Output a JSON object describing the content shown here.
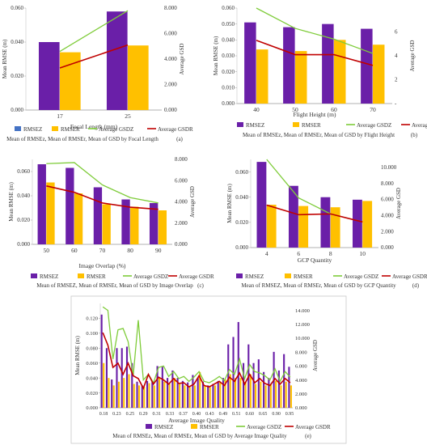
{
  "colors": {
    "rmsez": "#6a1fa8",
    "rmser": "#ffc000",
    "gsdz": "#7fcc3a",
    "gsdr": "#c00000",
    "rmsez_a": "#4472c4"
  },
  "chart_data": [
    {
      "id": "a",
      "type": "bar",
      "panel_label": "(a)",
      "caption": "Mean of RMSEz, Mean of RMSEr, Mean of GSD by Focal Length",
      "xlabel": "Focal Length (mm)",
      "ylabel": "Mean RMSE (m)",
      "ylabel2": "Average GSD",
      "categories": [
        "17",
        "25"
      ],
      "ylim": [
        0,
        0.06
      ],
      "yticks": [
        "0.000",
        "0.020",
        "0.040",
        "0.060"
      ],
      "y2lim": [
        0,
        8
      ],
      "y2ticks": [
        "0.000",
        "2.000",
        "4.000",
        "6.000",
        "8.000"
      ],
      "series": [
        {
          "name": "RMSEZ",
          "kind": "bar",
          "axis": "left",
          "values": [
            0.04,
            0.058
          ]
        },
        {
          "name": "RMSER",
          "kind": "bar",
          "axis": "left",
          "values": [
            0.034,
            0.038
          ]
        },
        {
          "name": "Average GSDZ",
          "kind": "line",
          "axis": "right",
          "values": [
            4.6,
            7.8
          ]
        },
        {
          "name": "Average GSDR",
          "kind": "line",
          "axis": "right",
          "values": [
            3.3,
            5.1
          ]
        }
      ]
    },
    {
      "id": "b",
      "type": "bar",
      "panel_label": "(b)",
      "caption": "Mean of RMSEz, Mean of RMSEr, Mean of GSD by Flight Height",
      "xlabel": "Flight Height (m)",
      "ylabel": "Mean RMSE (m)",
      "ylabel2": "Average GSD",
      "categories": [
        "40",
        "50",
        "60",
        "70"
      ],
      "ylim": [
        0,
        0.06
      ],
      "yticks": [
        "0.000",
        "0.010",
        "0.020",
        "0.030",
        "0.040",
        "0.050",
        "0.060"
      ],
      "y2lim": [
        0,
        8
      ],
      "y2ticks": [
        "-",
        "2",
        "4",
        "6"
      ],
      "series": [
        {
          "name": "RMSEZ",
          "kind": "bar",
          "axis": "left",
          "values": [
            0.051,
            0.048,
            0.05,
            0.047
          ]
        },
        {
          "name": "RMSER",
          "kind": "bar",
          "axis": "left",
          "values": [
            0.034,
            0.033,
            0.04,
            0.037
          ]
        },
        {
          "name": "Average GSDZ",
          "kind": "line",
          "axis": "right",
          "values": [
            8.0,
            6.3,
            5.4,
            4.2
          ]
        },
        {
          "name": "Average GSDR",
          "kind": "line",
          "axis": "right",
          "values": [
            5.3,
            4.1,
            4.1,
            3.2
          ]
        }
      ]
    },
    {
      "id": "c",
      "type": "bar",
      "panel_label": "(c)",
      "caption": "Mean of RMSEZ, Mean of RMSEr, Mean of GSD by Image Overlap",
      "xlabel": "Image Overlap (%)",
      "ylabel": "Mean RMSE (m)",
      "ylabel2": "Average GSD",
      "categories": [
        "50",
        "60",
        "70",
        "80",
        "90"
      ],
      "ylim": [
        0,
        0.07
      ],
      "yticks": [
        "0.000",
        "0.020",
        "0.040",
        "0.060"
      ],
      "y2lim": [
        0,
        8
      ],
      "y2ticks": [
        "0.000",
        "2.000",
        "4.000",
        "6.000",
        "8.000"
      ],
      "series": [
        {
          "name": "RMSEZ",
          "kind": "bar",
          "axis": "left",
          "values": [
            0.066,
            0.063,
            0.047,
            0.037,
            0.034
          ]
        },
        {
          "name": "RMSER",
          "kind": "bar",
          "axis": "left",
          "values": [
            0.051,
            0.042,
            0.033,
            0.031,
            0.028
          ]
        },
        {
          "name": "Average GSDZ",
          "kind": "line",
          "axis": "right",
          "values": [
            7.6,
            7.7,
            5.6,
            4.4,
            3.9
          ]
        },
        {
          "name": "Average GSDR",
          "kind": "line",
          "axis": "right",
          "values": [
            5.5,
            4.9,
            3.9,
            3.5,
            3.3
          ]
        }
      ]
    },
    {
      "id": "d",
      "type": "bar",
      "panel_label": "(d)",
      "caption": "Mean of RMSEZ, Mean of RMSEr, Mean of GSD by GCP Quantity",
      "xlabel": "GCP Quantity",
      "ylabel": "Mean RMSE (m)",
      "ylabel2": "Average GSD",
      "categories": [
        "4",
        "6",
        "8",
        "10"
      ],
      "ylim": [
        0,
        0.07
      ],
      "yticks": [
        "0.000",
        "0.020",
        "0.040",
        "0.060"
      ],
      "y2lim": [
        0,
        11
      ],
      "y2ticks": [
        "0.000",
        "2.000",
        "4.000",
        "6.000",
        "8.000",
        "10.000"
      ],
      "series": [
        {
          "name": "RMSEZ",
          "kind": "bar",
          "axis": "left",
          "values": [
            0.068,
            0.049,
            0.04,
            0.038
          ]
        },
        {
          "name": "RMSER",
          "kind": "bar",
          "axis": "left",
          "values": [
            0.034,
            0.033,
            0.032,
            0.037
          ]
        },
        {
          "name": "Average GSDZ",
          "kind": "line",
          "axis": "right",
          "values": [
            11.0,
            6.2,
            4.2,
            3.2
          ]
        },
        {
          "name": "Average GSDR",
          "kind": "line",
          "axis": "right",
          "values": [
            5.3,
            4.1,
            4.2,
            3.2
          ]
        }
      ]
    },
    {
      "id": "e",
      "type": "bar",
      "panel_label": "(e)",
      "caption": "Mean of RMSEz, Mean of RMSEr, Mean of GSD by Average Image Quality",
      "xlabel": "Average Image Quality",
      "ylabel": "Mean RMSE (m)",
      "ylabel2": "Average GSD",
      "x_tick_labels": [
        "0.18",
        "0.23",
        "0.25",
        "0.29",
        "0.31",
        "0.33",
        "0.37",
        "0.40",
        "0.43",
        "0.49",
        "0.51",
        "0.60",
        "0.65",
        "0.90",
        "0.95"
      ],
      "categories_count": 38,
      "ylim": [
        0,
        0.14
      ],
      "yticks": [
        "0.000",
        "0.020",
        "0.040",
        "0.060",
        "0.080",
        "0.100",
        "0.120"
      ],
      "y2lim": [
        0,
        15
      ],
      "y2ticks": [
        "0.000",
        "2.000",
        "4.000",
        "6.000",
        "8.000",
        "10.000",
        "12.000",
        "14.000"
      ],
      "series": [
        {
          "name": "RMSEZ",
          "kind": "bar",
          "axis": "left",
          "values": [
            0.125,
            0.08,
            0.038,
            0.08,
            0.08,
            0.082,
            0.06,
            0.035,
            0.03,
            0.036,
            0.035,
            0.056,
            0.055,
            0.04,
            0.05,
            0.04,
            0.036,
            0.034,
            0.044,
            0.04,
            0.035,
            0.03,
            0.032,
            0.036,
            0.04,
            0.085,
            0.095,
            0.115,
            0.06,
            0.085,
            0.06,
            0.065,
            0.048,
            0.04,
            0.075,
            0.05,
            0.072,
            0.055
          ]
        },
        {
          "name": "RMSER",
          "kind": "bar",
          "axis": "left",
          "values": [
            0.06,
            0.04,
            0.03,
            0.035,
            0.04,
            0.045,
            0.032,
            0.03,
            0.028,
            0.033,
            0.03,
            0.04,
            0.035,
            0.032,
            0.04,
            0.032,
            0.03,
            0.028,
            0.03,
            0.048,
            0.03,
            0.028,
            0.03,
            0.035,
            0.038,
            0.045,
            0.04,
            0.04,
            0.035,
            0.045,
            0.032,
            0.035,
            0.03,
            0.032,
            0.036,
            0.03,
            0.035,
            0.03
          ]
        },
        {
          "name": "Average GSDZ",
          "kind": "line",
          "axis": "right",
          "values": [
            14.5,
            14.0,
            7.0,
            11.2,
            11.4,
            9.5,
            4.6,
            12.6,
            4.0,
            4.8,
            3.6,
            5.8,
            6.0,
            4.5,
            5.2,
            4.2,
            4.5,
            3.8,
            4.4,
            5.2,
            3.8,
            3.6,
            4.0,
            4.5,
            3.9,
            5.5,
            4.8,
            7.0,
            4.2,
            6.2,
            5.2,
            5.0,
            4.6,
            4.0,
            5.6,
            3.8,
            5.2,
            4.4
          ]
        },
        {
          "name": "Average GSDR",
          "kind": "line",
          "axis": "right",
          "values": [
            10.8,
            9.0,
            5.8,
            6.4,
            4.8,
            6.4,
            4.6,
            4.2,
            2.8,
            4.8,
            3.4,
            4.4,
            4.0,
            3.4,
            4.2,
            3.5,
            3.6,
            3.0,
            3.4,
            4.6,
            3.2,
            3.0,
            3.4,
            3.8,
            3.2,
            4.4,
            3.8,
            5.0,
            3.4,
            4.8,
            3.6,
            4.2,
            3.5,
            3.2,
            4.2,
            3.4,
            4.2,
            3.6
          ]
        }
      ]
    }
  ]
}
